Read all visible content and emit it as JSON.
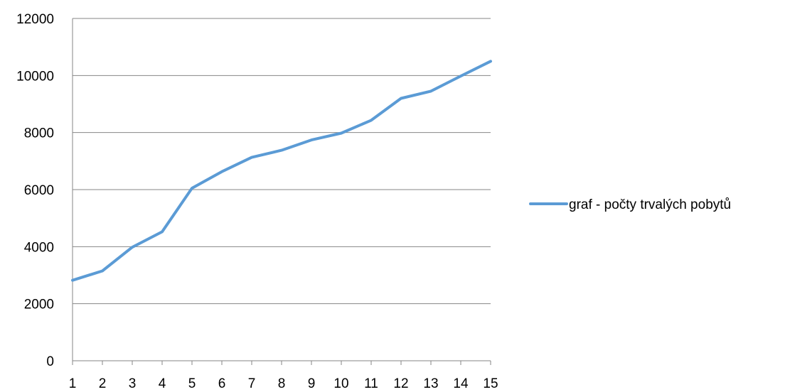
{
  "chart_data": {
    "type": "line",
    "title": "",
    "xlabel": "",
    "ylabel": "",
    "categories": [
      "1",
      "2",
      "3",
      "4",
      "5",
      "6",
      "7",
      "8",
      "9",
      "10",
      "11",
      "12",
      "13",
      "14",
      "15"
    ],
    "ylim": [
      0,
      12000
    ],
    "yticks": [
      0,
      2000,
      4000,
      6000,
      8000,
      10000,
      12000
    ],
    "grid": "horizontal",
    "legend_position": "right",
    "series": [
      {
        "name": "graf - počty trvalých pobytů",
        "color": "#5b9bd5",
        "values": [
          2820,
          3150,
          3980,
          4520,
          6050,
          6630,
          7130,
          7380,
          7740,
          7980,
          8430,
          9200,
          9450,
          9980,
          10500
        ]
      }
    ]
  }
}
